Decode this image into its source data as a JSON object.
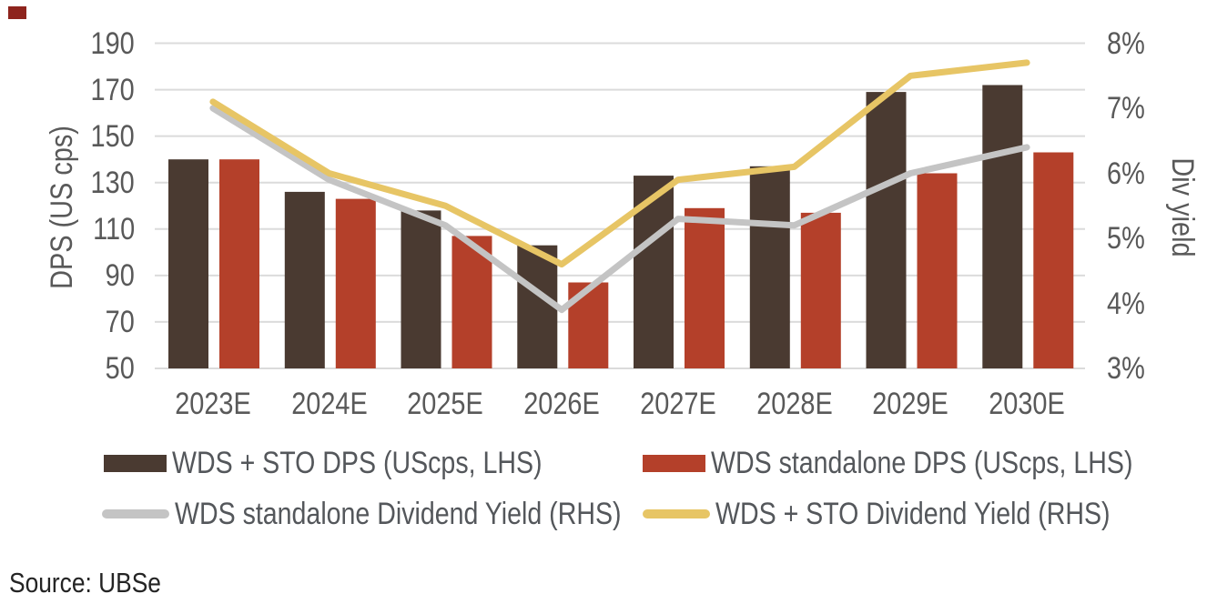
{
  "figure": {
    "corner_mark_color": "#8e241d",
    "source_text": "Source: UBSe"
  },
  "chart_data": {
    "type": "bar",
    "subtype": "combo-bar-line-dual-axis",
    "categories": [
      "2023E",
      "2024E",
      "2025E",
      "2026E",
      "2027E",
      "2028E",
      "2029E",
      "2030E"
    ],
    "series": [
      {
        "name": "WDS + STO DPS (UScps, LHS)",
        "type": "bar",
        "axis": "left",
        "color": "#4a3a31",
        "values": [
          140,
          126,
          118,
          103,
          133,
          137,
          169,
          172
        ]
      },
      {
        "name": "WDS standalone DPS (UScps, LHS)",
        "type": "bar",
        "axis": "left",
        "color": "#b4402a",
        "values": [
          140,
          123,
          107,
          87,
          119,
          117,
          134,
          143
        ]
      },
      {
        "name": "WDS standalone Dividend Yield (RHS)",
        "type": "line",
        "axis": "right",
        "color": "#c4c4c4",
        "values": [
          7.0,
          5.9,
          5.2,
          3.9,
          5.3,
          5.2,
          6.0,
          6.4
        ]
      },
      {
        "name": "WDS + STO Dividend Yield (RHS)",
        "type": "line",
        "axis": "right",
        "color": "#e7c565",
        "values": [
          7.1,
          6.0,
          5.5,
          4.6,
          5.9,
          6.1,
          7.5,
          7.7
        ]
      }
    ],
    "y_left": {
      "label": "DPS (US cps)",
      "min": 50,
      "max": 190,
      "ticks": [
        190,
        170,
        150,
        130,
        110,
        90,
        70,
        50
      ]
    },
    "y_right": {
      "label": "Div yield",
      "min": 3,
      "max": 8,
      "tick_labels": [
        "8%",
        "7%",
        "6%",
        "5%",
        "4%",
        "3%"
      ],
      "tick_values": [
        8,
        7,
        6,
        5,
        4,
        3
      ]
    },
    "grid": "horizontal",
    "legend_position": "bottom",
    "gridline_color": "#dbdbdb"
  }
}
